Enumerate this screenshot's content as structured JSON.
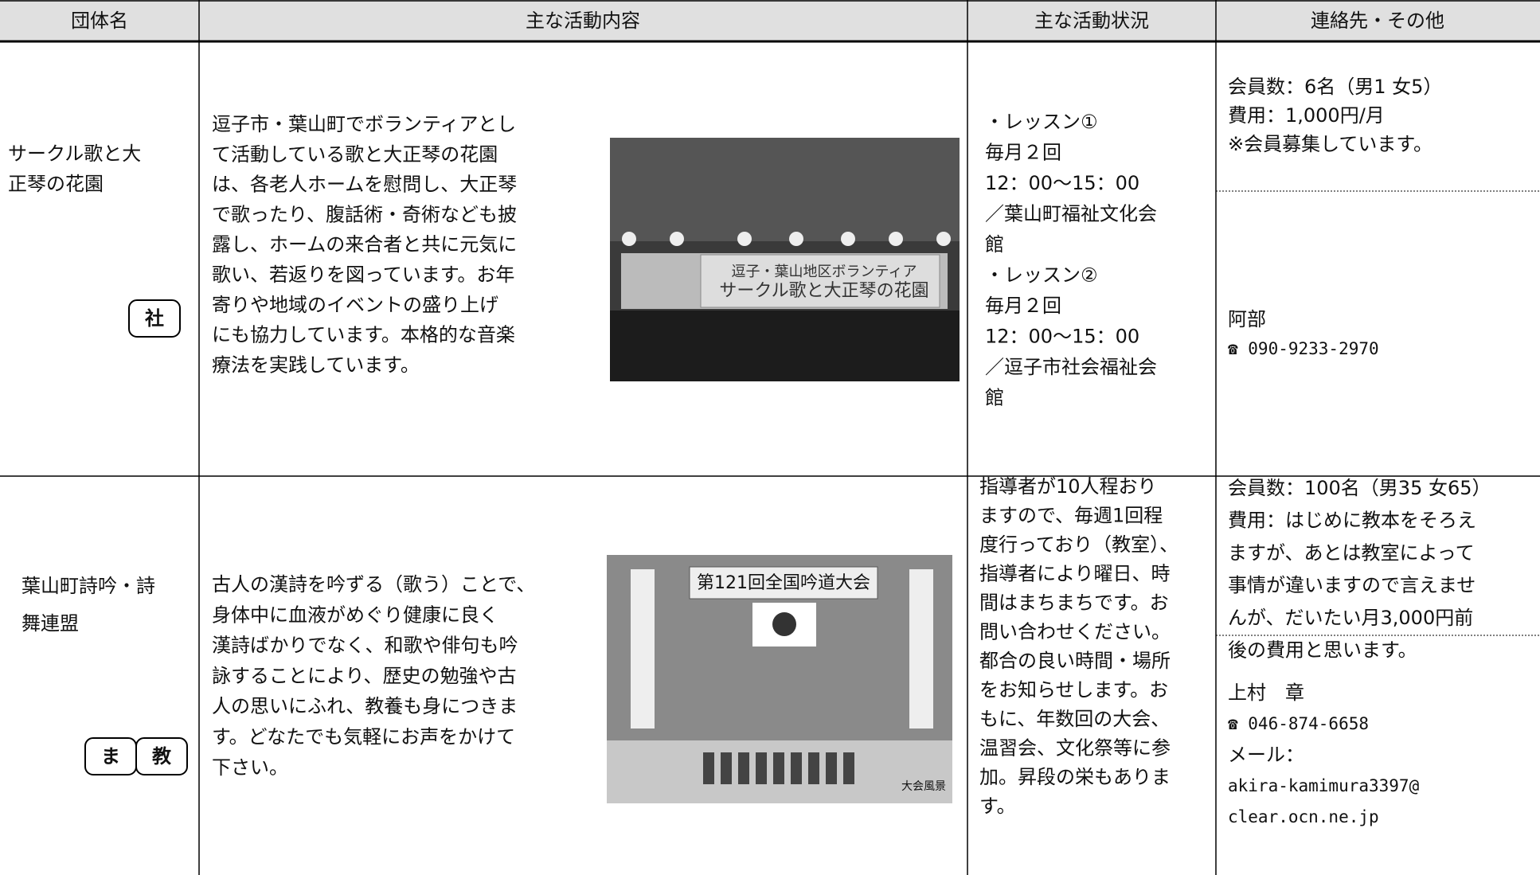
{
  "header": [
    "団体名",
    "主な活動内容",
    "主な活動状況",
    "連絡先・その他"
  ],
  "rows": [
    {
      "name": [
        "サークル歌と大",
        "正琴の花園"
      ],
      "badges": [
        "社"
      ],
      "description": [
        "逗子市・葉山町でボランティアとし",
        "て活動している歌と大正琴の花園",
        "は、各老人ホームを慰問し、大正琴",
        "で歌ったり、腹話術・奇術なども披",
        "露し、ホームの来合者と共に元気に",
        "歌い、若返りを図っています。お年",
        "寄りや地域のイベントの盛り上げ",
        "にも協力しています。本格的な音楽",
        "療法を実践しています。"
      ],
      "photo_text": [
        "逗子・葉山地区ボランティア",
        "サークル歌と大正琴の花園"
      ],
      "activity": [
        "・レッスン①",
        "毎月２回",
        "12：00～15：00",
        "／葉山町福祉文化会",
        "館",
        "・レッスン②",
        "毎月２回",
        "12：00～15：00",
        "／逗子市社会福祉会",
        "館"
      ],
      "membership": [
        "会員数：6名（男1 女5）",
        "費用：1,000円/月",
        "※会員募集しています。"
      ],
      "contact": [
        "阿部",
        "☎ 090-9233-2970"
      ]
    },
    {
      "name": [
        "葉山町詩吟・詩",
        "舞連盟"
      ],
      "badges": [
        "ま",
        "教"
      ],
      "description": [
        "古人の漢詩を吟ずる（歌う）ことで、",
        "身体中に血液がめぐり健康に良く",
        "漢詩ばかりでなく、和歌や俳句も吟",
        "詠することにより、歴史の勉強や古",
        "人の思いにふれ、教養も身につきま",
        "す。どなたでも気軽にお声をかけて",
        "下さい。"
      ],
      "photo_text": [
        "第121回全国吟道大会",
        "大会風景"
      ],
      "activity": [
        "指導者が10人程おり",
        "ますので、毎週1回程",
        "度行っており（教室）、",
        "指導者により曜日、時",
        "間はまちまちです。お",
        "問い合わせください。",
        "都合の良い時間・場所",
        "をお知らせします。お",
        "もに、年数回の大会、",
        "温習会、文化祭等に参",
        "加。昇段の栄もありま",
        "す。"
      ],
      "membership": [
        "会員数：100名（男35 女65）",
        "費用：はじめに教本をそろえ",
        "ますが、あとは教室によって",
        "事情が違いますので言えませ",
        "んが、だいたい月3,000円前",
        "後の費用と思います。"
      ],
      "contact": [
        "上村　章",
        "☎ 046-874-6658",
        "メール：",
        "akira-kamimura3397@",
        "clear.ocn.ne.jp"
      ]
    }
  ]
}
